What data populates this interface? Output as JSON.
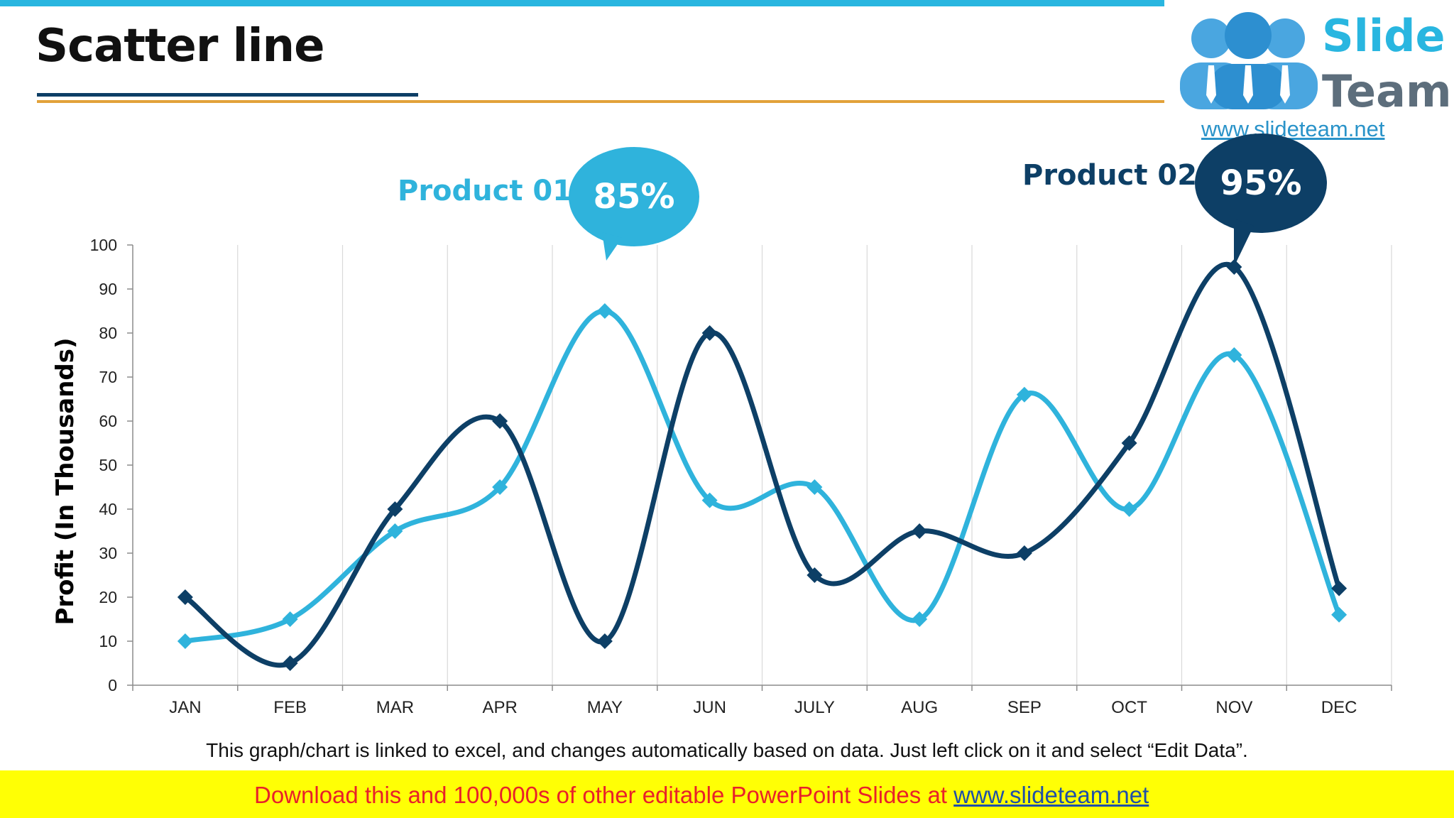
{
  "slide": {
    "title": "Scatter line",
    "note": "This graph/chart is linked to excel, and changes automatically based on data. Just left click on it and select “Edit Data”."
  },
  "logo": {
    "line1": "Slide",
    "line2": "Team",
    "url": "www.slideteam.net"
  },
  "footer": {
    "text": "Download this and 100,000s of other editable PowerPoint Slides at ",
    "link": "www.slideteam.net"
  },
  "callouts": [
    {
      "series": "Product 01",
      "value": "85%",
      "color": "#2fb3dc"
    },
    {
      "series": "Product 02",
      "value": "95%",
      "color": "#0d3f66"
    }
  ],
  "chart_data": {
    "type": "line",
    "smooth": true,
    "marker": "diamond",
    "ylabel": "Profit (In Thousands)",
    "ylim": [
      0,
      100
    ],
    "yticks": [
      0,
      10,
      20,
      30,
      40,
      50,
      60,
      70,
      80,
      90,
      100
    ],
    "grid": "vertical",
    "categories": [
      "JAN",
      "FEB",
      "MAR",
      "APR",
      "MAY",
      "JUN",
      "JULY",
      "AUG",
      "SEP",
      "OCT",
      "NOV",
      "DEC"
    ],
    "series": [
      {
        "name": "Product 01",
        "color": "#2fb3dc",
        "values": [
          10,
          15,
          35,
          45,
          85,
          42,
          45,
          15,
          66,
          40,
          75,
          16
        ]
      },
      {
        "name": "Product 02",
        "color": "#0d3f66",
        "values": [
          20,
          5,
          40,
          60,
          10,
          80,
          25,
          35,
          30,
          55,
          95,
          22
        ]
      }
    ]
  }
}
